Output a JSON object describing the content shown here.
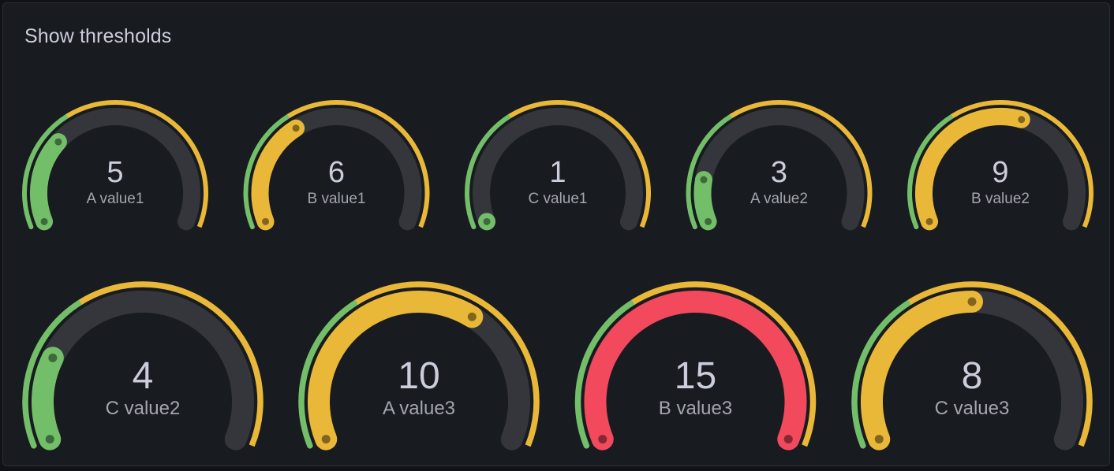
{
  "panel": {
    "title": "Show thresholds"
  },
  "colors": {
    "background": "#181b1f",
    "track": "#35363c",
    "green": "#73bf69",
    "yellow": "#eab839",
    "red": "#f2495c",
    "text": "#ccccdc",
    "label": "#a4a5b0"
  },
  "chart_data": {
    "type": "gauge",
    "title": "Show thresholds",
    "min": 1,
    "max": 15,
    "thresholds": [
      {
        "from": 1,
        "color": "green"
      },
      {
        "from": 6,
        "color": "yellow"
      },
      {
        "from": 15,
        "color": "red"
      }
    ],
    "gauges": [
      {
        "label": "A value1",
        "value": 5
      },
      {
        "label": "B value1",
        "value": 6
      },
      {
        "label": "C value1",
        "value": 1
      },
      {
        "label": "A value2",
        "value": 3
      },
      {
        "label": "B value2",
        "value": 9
      },
      {
        "label": "C value2",
        "value": 4
      },
      {
        "label": "A value3",
        "value": 10
      },
      {
        "label": "B value3",
        "value": 15
      },
      {
        "label": "C value3",
        "value": 8
      }
    ]
  }
}
